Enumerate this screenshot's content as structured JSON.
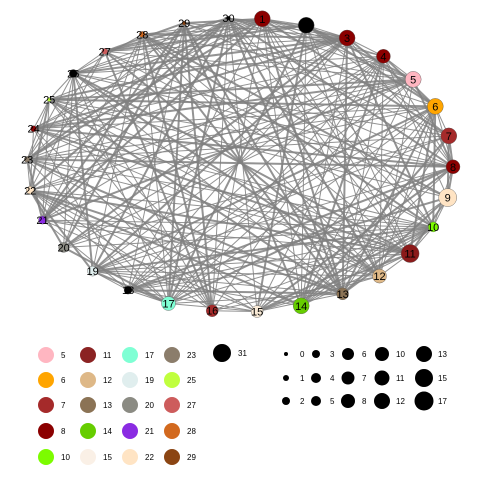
{
  "network": {
    "nodes": [
      {
        "id": "1",
        "label": "1",
        "color": "#8B0000",
        "size": 8
      },
      {
        "id": "2",
        "label": "2",
        "color": "#000000",
        "size": 8
      },
      {
        "id": "3",
        "label": "3",
        "color": "#8B0000",
        "size": 8
      },
      {
        "id": "4",
        "label": "4",
        "color": "#8B0000",
        "size": 7
      },
      {
        "id": "5",
        "label": "5",
        "color": "#FFB6C1",
        "size": 8
      },
      {
        "id": "6",
        "label": "6",
        "color": "#FFA500",
        "size": 8
      },
      {
        "id": "7",
        "label": "7",
        "color": "#A52A2A",
        "size": 8
      },
      {
        "id": "8",
        "label": "8",
        "color": "#8B0000",
        "size": 7
      },
      {
        "id": "9",
        "label": "9",
        "color": "#FFE4C4",
        "size": 9
      },
      {
        "id": "10",
        "label": "10",
        "color": "#7CFC00",
        "size": 5
      },
      {
        "id": "11",
        "label": "11",
        "color": "#8B1A1A",
        "size": 9
      },
      {
        "id": "12",
        "label": "12",
        "color": "#DEB887",
        "size": 7
      },
      {
        "id": "13",
        "label": "13",
        "color": "#8B7355",
        "size": 6
      },
      {
        "id": "14",
        "label": "14",
        "color": "#66CD00",
        "size": 8
      },
      {
        "id": "15",
        "label": "15",
        "color": "#FAEBD7",
        "size": 6
      },
      {
        "id": "16",
        "label": "16",
        "color": "#A52A2A",
        "size": 6
      },
      {
        "id": "17",
        "label": "17",
        "color": "#7FFFD4",
        "size": 7
      },
      {
        "id": "18",
        "label": "18",
        "color": "#000000",
        "size": 4
      },
      {
        "id": "19",
        "label": "19",
        "color": "#E0EEEE",
        "size": 5
      },
      {
        "id": "20",
        "label": "20",
        "color": "#8B8B83",
        "size": 5
      },
      {
        "id": "21",
        "label": "21",
        "color": "#8A2BE2",
        "size": 4
      },
      {
        "id": "22",
        "label": "22",
        "color": "#FFE4C4",
        "size": 4
      },
      {
        "id": "23",
        "label": "23",
        "color": "#8B7D6B",
        "size": 3
      },
      {
        "id": "24",
        "label": "24",
        "color": "#8B0000",
        "size": 3
      },
      {
        "id": "25",
        "label": "25",
        "color": "#C0FF3E",
        "size": 2
      },
      {
        "id": "26",
        "label": "26",
        "color": "#000000",
        "size": 4
      },
      {
        "id": "27",
        "label": "27",
        "color": "#CD5C5C",
        "size": 3
      },
      {
        "id": "28",
        "label": "28",
        "color": "#D2691E",
        "size": 3
      },
      {
        "id": "29",
        "label": "29",
        "color": "#8B4513",
        "size": 2
      },
      {
        "id": "30",
        "label": "30",
        "color": "#000000",
        "size": 2
      }
    ],
    "edge_color": "#808080"
  },
  "color_legend": [
    {
      "label": "5",
      "color": "#FFB6C1"
    },
    {
      "label": "6",
      "color": "#FFA500"
    },
    {
      "label": "7",
      "color": "#A52A2A"
    },
    {
      "label": "8",
      "color": "#8B0000"
    },
    {
      "label": "10",
      "color": "#7CFC00"
    },
    {
      "label": "11",
      "color": "#8B2323"
    },
    {
      "label": "12",
      "color": "#DEB887"
    },
    {
      "label": "13",
      "color": "#8B7355"
    },
    {
      "label": "14",
      "color": "#66CD00"
    },
    {
      "label": "15",
      "color": "#FAF0E6"
    },
    {
      "label": "17",
      "color": "#7FFFD4"
    },
    {
      "label": "19",
      "color": "#E0EEEE"
    },
    {
      "label": "20",
      "color": "#8B8B83"
    },
    {
      "label": "21",
      "color": "#8A2BE2"
    },
    {
      "label": "22",
      "color": "#FFE4C4"
    },
    {
      "label": "23",
      "color": "#8B7D6B"
    },
    {
      "label": "25",
      "color": "#C0FF3E"
    },
    {
      "label": "27",
      "color": "#CD5C5C"
    },
    {
      "label": "28",
      "color": "#D2691E"
    },
    {
      "label": "29",
      "color": "#8B4513"
    },
    {
      "label": "31",
      "color": "#000000"
    }
  ],
  "size_legend": [
    {
      "label": "0"
    },
    {
      "label": "1"
    },
    {
      "label": "2"
    },
    {
      "label": "3"
    },
    {
      "label": "4"
    },
    {
      "label": "5"
    },
    {
      "label": "6"
    },
    {
      "label": "7"
    },
    {
      "label": "8"
    },
    {
      "label": "10"
    },
    {
      "label": "11"
    },
    {
      "label": "12"
    },
    {
      "label": "13"
    },
    {
      "label": "15"
    },
    {
      "label": "17"
    }
  ]
}
